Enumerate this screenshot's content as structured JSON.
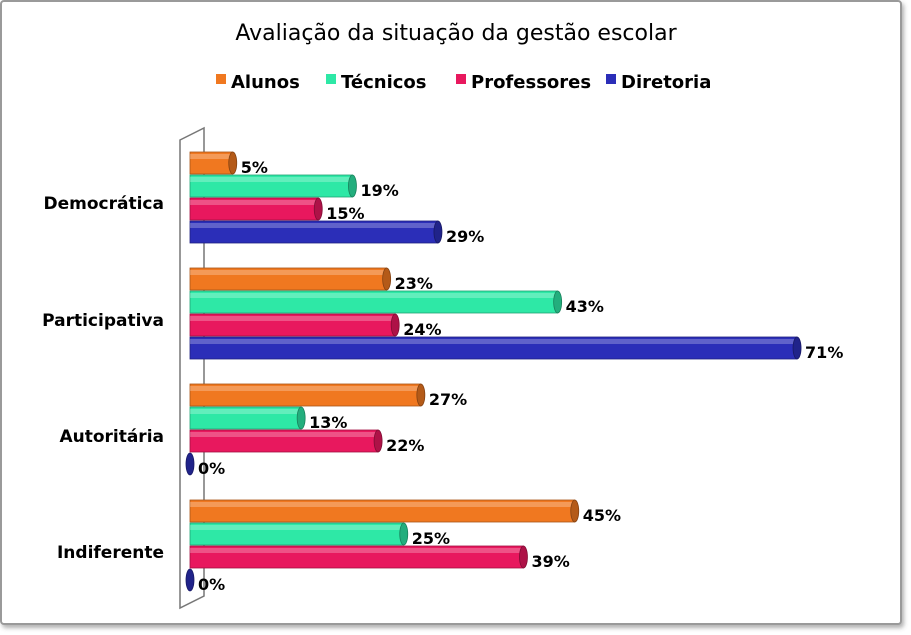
{
  "chart_data": {
    "type": "bar",
    "orientation": "horizontal",
    "title": "Avaliação da situação da gestão escolar",
    "categories": [
      "Democrática",
      "Participativa",
      "Autoritária",
      "Indiferente"
    ],
    "series": [
      {
        "name": "Alunos",
        "color": "#F07820",
        "values": [
          5,
          23,
          27,
          45
        ],
        "labels": [
          "5%",
          "23%",
          "27%",
          "45%"
        ]
      },
      {
        "name": "Técnicos",
        "color": "#2EE8A6",
        "values": [
          19,
          43,
          13,
          25
        ],
        "labels": [
          "19%",
          "43%",
          "13%",
          "25%"
        ]
      },
      {
        "name": "Professores",
        "color": "#E8185E",
        "values": [
          15,
          24,
          22,
          39
        ],
        "labels": [
          "15%",
          "24%",
          "22%",
          "39%"
        ]
      },
      {
        "name": "Diretoria",
        "color": "#2B2EB8",
        "values": [
          29,
          71,
          0,
          0
        ],
        "labels": [
          "29%",
          "71%",
          "0%",
          "0%"
        ]
      }
    ],
    "xlim": [
      0,
      75
    ],
    "grid": false,
    "legend_position": "top"
  }
}
